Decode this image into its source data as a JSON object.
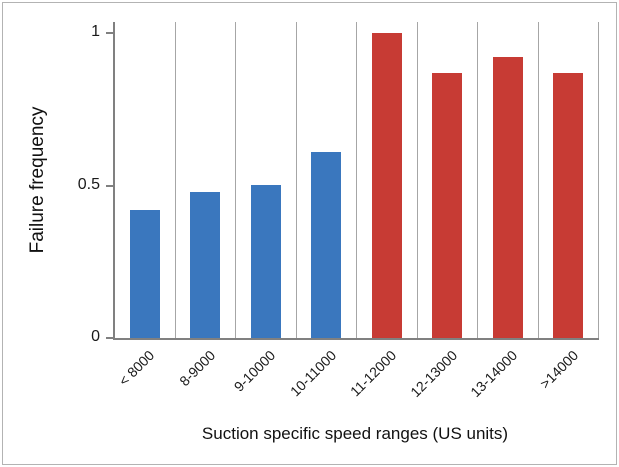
{
  "chart_data": {
    "type": "bar",
    "title": "",
    "categories": [
      "< 8000",
      "8-9000",
      "9-10000",
      "10-11000",
      "11-12000",
      "12-13000",
      "13-14000",
      ">14000"
    ],
    "values": [
      0.42,
      0.48,
      0.5,
      0.61,
      1.0,
      0.87,
      0.92,
      0.87
    ],
    "bar_colors": [
      "#3a77be",
      "#3a77be",
      "#3a77be",
      "#3a77be",
      "#c73b34",
      "#c73b34",
      "#c73b34",
      "#c73b34"
    ],
    "color_groups": [
      {
        "color": "#3a77be",
        "categories": [
          "< 8000",
          "8-9000",
          "9-10000",
          "10-11000"
        ]
      },
      {
        "color": "#c73b34",
        "categories": [
          "11-12000",
          "12-13000",
          "13-14000",
          ">14000"
        ]
      }
    ],
    "xlabel": "Suction specific speed ranges (US units)",
    "ylabel": "Failure frequency",
    "ylim": [
      0,
      1.05
    ],
    "yticks": [
      0,
      0.5,
      1
    ],
    "grid": "vertical-category-boundaries",
    "legend": "none"
  },
  "frame": {
    "border_color": "#b3b3b3",
    "background": "#ffffff"
  },
  "axis": {
    "line_color": "#808080",
    "gridline_color": "#a6a6a6",
    "text_color": "#1a1a1a"
  }
}
